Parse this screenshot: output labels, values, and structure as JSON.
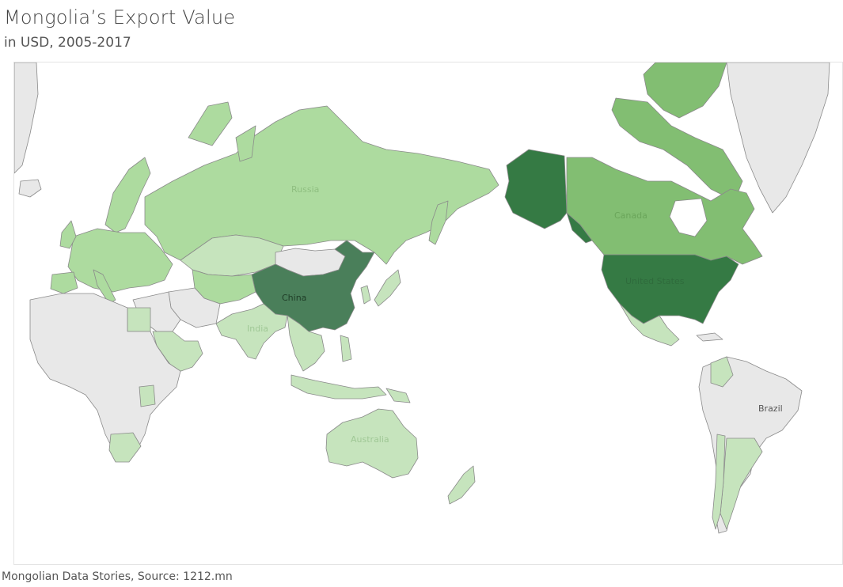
{
  "title": "Mongolia’s Export Value",
  "subtitle": "in USD, 2005-2017",
  "footer": "Mongolian Data Stories, Source: 1212.mn",
  "colors": {
    "no_data": "#e8e8e8",
    "lightest": "#c6e4bd",
    "light": "#addb9f",
    "medium": "#82be72",
    "dark": "#3f8750",
    "darkest": "#357a44"
  },
  "map_labels": {
    "russia": "Russia",
    "canada": "Canada",
    "china": "China",
    "india": "India",
    "australia": "Australia",
    "brazil": "Brazil",
    "united_states": "United States"
  }
}
